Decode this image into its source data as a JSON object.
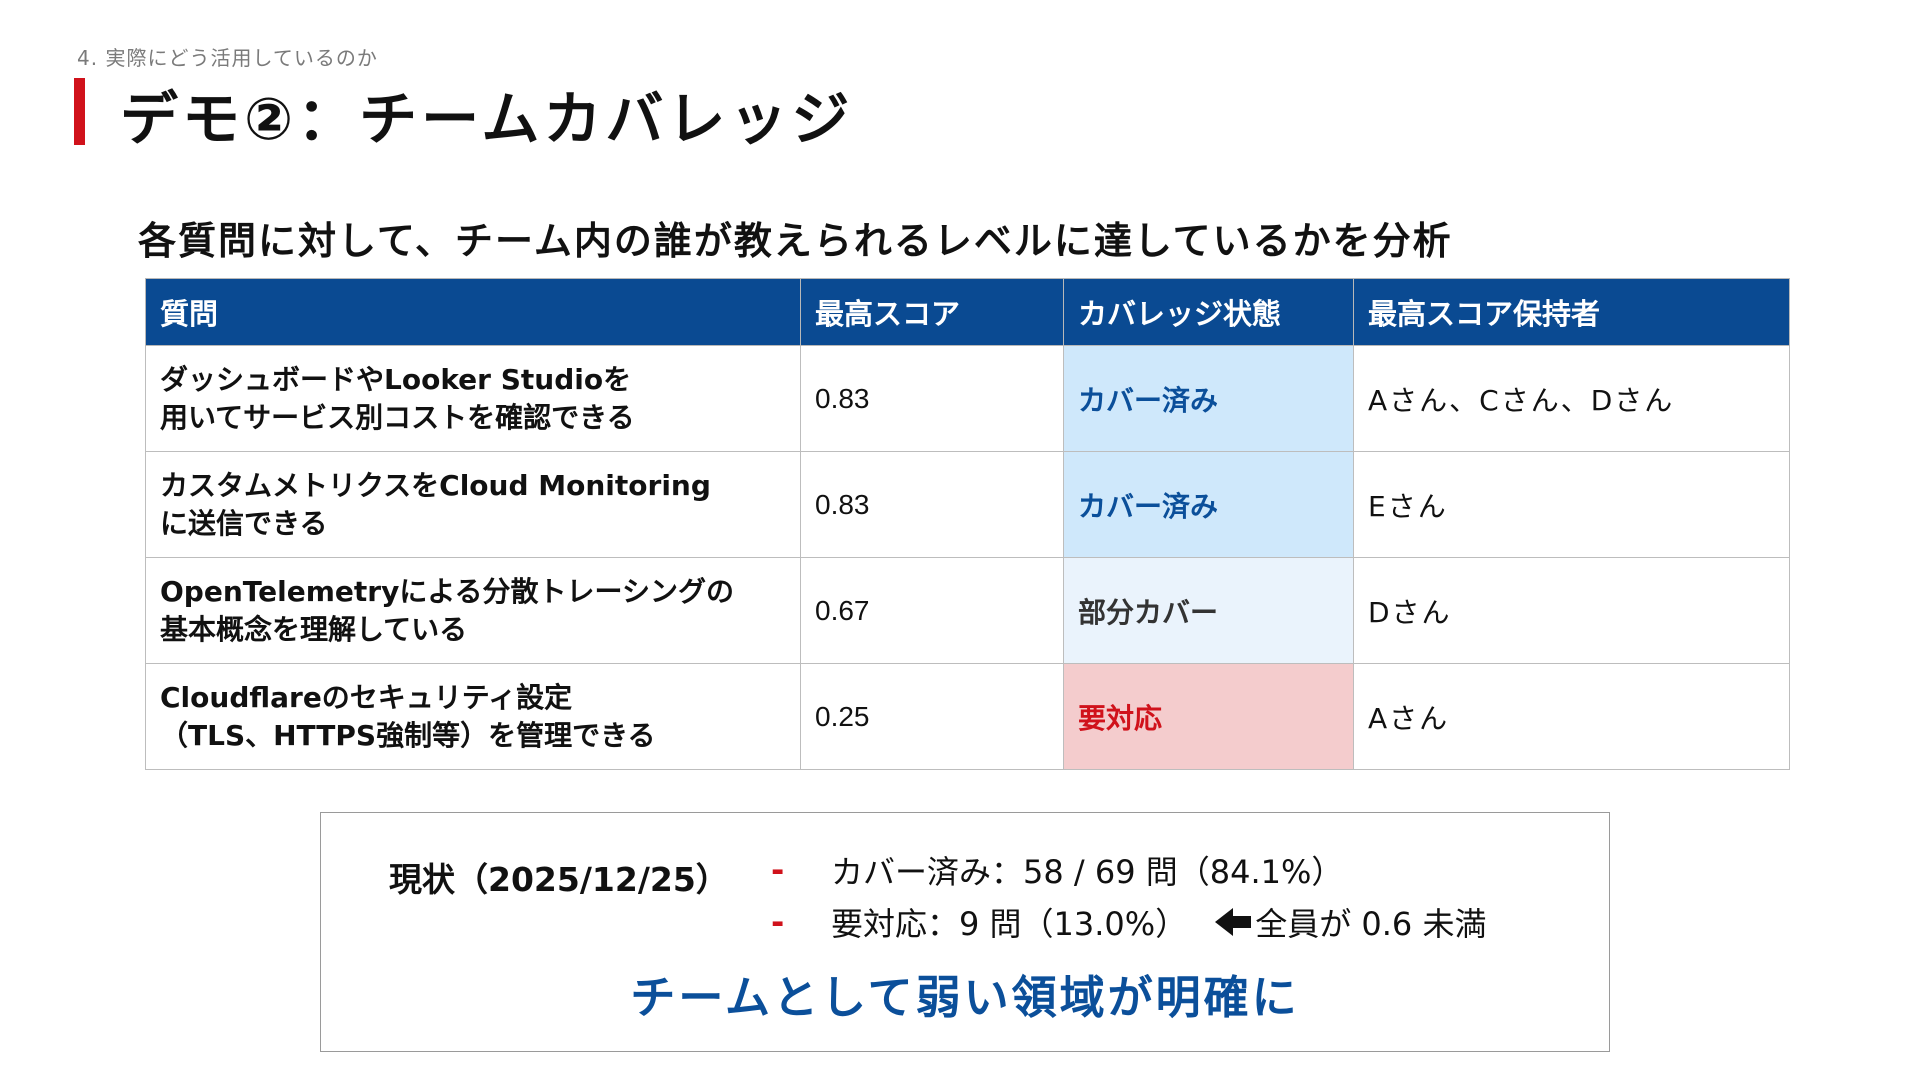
{
  "section_label": "4. 実際にどう活用しているのか",
  "title": "デモ②：チームカバレッジ",
  "subtitle": "各質問に対して、チーム内の誰が教えられるレベルに達しているかを分析",
  "table": {
    "headers": [
      "質問",
      "最高スコア",
      "カバレッジ状態",
      "最高スコア保持者"
    ],
    "rows": [
      {
        "question_line1": "ダッシュボードやLooker Studioを",
        "question_line2": "用いてサービス別コストを確認できる",
        "score": "0.83",
        "status": "カバー済み",
        "holder": "Aさん、Cさん、Dさん"
      },
      {
        "question_line1": "カスタムメトリクスをCloud Monitoring",
        "question_line2": "に送信できる",
        "score": "0.83",
        "status": "カバー済み",
        "holder": "Eさん"
      },
      {
        "question_line1": "OpenTelemetryによる分散トレーシングの",
        "question_line2": "基本概念を理解している",
        "score": "0.67",
        "status": "部分カバー",
        "holder": "Dさん"
      },
      {
        "question_line1": "Cloudflareのセキュリティ設定",
        "question_line2": "（TLS、HTTPS強制等）を管理できる",
        "score": "0.25",
        "status": "要対応",
        "holder": "Aさん"
      }
    ]
  },
  "summary": {
    "label": "現状（2025/12/25）",
    "bullet_marker": "-",
    "bullet1": "カバー済み：58 / 69 問（84.1%）",
    "bullet2": "要対応：9 問（13.0%）",
    "bullet2_note": "全員が 0.6 未満",
    "conclusion": "チームとして弱い領域が明確に"
  },
  "colors": {
    "accent_red": "#d0121b",
    "header_blue": "#0a4a92",
    "covered_bg": "#cfe8fb",
    "partial_bg": "#eaf3fc",
    "needed_bg": "#f4cccd"
  },
  "icons": {
    "note_arrow": "left-arrow-icon"
  }
}
